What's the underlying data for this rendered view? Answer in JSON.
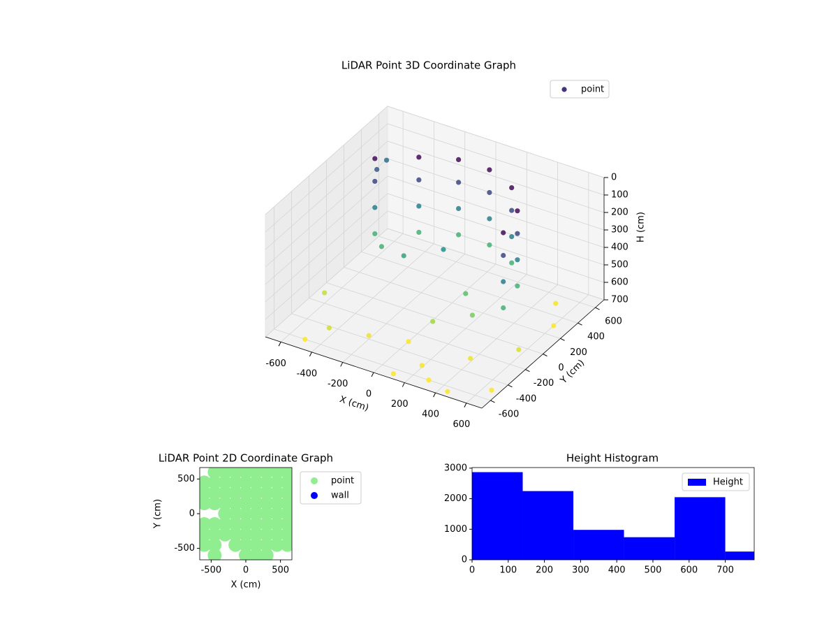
{
  "chart_data": [
    {
      "type": "scatter3d",
      "title": "LiDAR Point 3D Coordinate Graph",
      "x_label": "X (cm)",
      "y_label": "Y (cm)",
      "z_label": "H (cm)",
      "xlim": [
        -700,
        700
      ],
      "ylim": [
        -700,
        700
      ],
      "zlim": [
        700,
        0
      ],
      "xticks": [
        -600,
        -400,
        -200,
        0,
        200,
        400,
        600
      ],
      "yticks": [
        -600,
        -400,
        -200,
        0,
        200,
        400,
        600
      ],
      "zticks": [
        0,
        100,
        200,
        300,
        400,
        500,
        600,
        700
      ],
      "colormap": [
        "#440154",
        "#3b528b",
        "#21918c",
        "#5ec962",
        "#fde725"
      ],
      "legend": "upper right",
      "grid": true,
      "series": [
        {
          "name": "point",
          "color": "#46327e",
          "x": [
            -500,
            -500,
            -500,
            -500,
            -300,
            -300,
            -300,
            -300,
            -100,
            -100,
            -100,
            -100,
            100,
            100,
            100,
            100,
            300,
            300,
            300,
            300,
            450,
            450,
            450,
            450,
            500,
            500,
            500,
            500,
            -400,
            -200,
            0,
            200,
            400,
            600,
            600,
            500,
            300,
            -600,
            -500,
            100,
            650,
            450,
            -600,
            -650,
            -200,
            0,
            200,
            300,
            -400,
            100
          ],
          "y": [
            200,
            200,
            200,
            200,
            350,
            350,
            350,
            350,
            450,
            450,
            450,
            450,
            450,
            450,
            450,
            450,
            350,
            350,
            350,
            350,
            150,
            150,
            150,
            150,
            -100,
            -100,
            -100,
            -100,
            -500,
            -400,
            -300,
            -500,
            -300,
            -100,
            300,
            500,
            -600,
            -200,
            -600,
            -650,
            -500,
            -650,
            400,
            600,
            0,
            100,
            0,
            -100,
            100,
            -200
          ],
          "z": [
            20,
            150,
            300,
            450,
            20,
            150,
            300,
            450,
            20,
            150,
            300,
            450,
            20,
            150,
            300,
            450,
            20,
            150,
            300,
            450,
            20,
            150,
            300,
            450,
            20,
            150,
            300,
            450,
            650,
            680,
            700,
            690,
            680,
            660,
            700,
            690,
            700,
            640,
            700,
            700,
            700,
            700,
            200,
            250,
            400,
            350,
            500,
            550,
            450,
            600
          ]
        }
      ]
    },
    {
      "type": "scatter",
      "title": "LiDAR Point 2D Coordinate Graph",
      "x_label": "X (cm)",
      "y_label": "Y (cm)",
      "xlim": [
        -665,
        665
      ],
      "ylim": [
        -665,
        665
      ],
      "xticks": [
        -500,
        0,
        500
      ],
      "yticks": [
        -500,
        0,
        500
      ],
      "legend": "outside right",
      "series": [
        {
          "name": "point",
          "color": "#90ee90",
          "x": [
            -450,
            -300,
            -150,
            0,
            150,
            300,
            450,
            600,
            -600,
            -450,
            -300,
            -150,
            0,
            150,
            300,
            450,
            600,
            -600,
            -450,
            -300,
            -150,
            0,
            150,
            300,
            450,
            600,
            -600,
            -450,
            -300,
            -150,
            0,
            150,
            300,
            450,
            600,
            -300,
            -150,
            0,
            150,
            300,
            450,
            600,
            -600,
            -450,
            -300,
            -150,
            0,
            150,
            300,
            450,
            600,
            -600,
            -450,
            -300,
            -150,
            0,
            150,
            300,
            450,
            600,
            -600,
            -450,
            -150,
            0,
            150,
            300,
            450,
            600,
            -450,
            0,
            150,
            300
          ],
          "y": [
            600,
            600,
            600,
            600,
            600,
            600,
            600,
            600,
            450,
            450,
            450,
            450,
            450,
            450,
            450,
            450,
            450,
            300,
            300,
            300,
            300,
            300,
            300,
            300,
            300,
            300,
            150,
            150,
            150,
            150,
            150,
            150,
            150,
            150,
            150,
            0,
            0,
            0,
            0,
            0,
            0,
            0,
            -150,
            -150,
            -150,
            -150,
            -150,
            -150,
            -150,
            -150,
            -150,
            -300,
            -300,
            -300,
            -300,
            -300,
            -300,
            -300,
            -300,
            -300,
            -450,
            -450,
            -450,
            -450,
            -450,
            -450,
            -450,
            -450,
            -600,
            -600,
            -600,
            -600
          ]
        },
        {
          "name": "wall",
          "color": "#0000ff",
          "x": [],
          "y": []
        }
      ]
    },
    {
      "type": "histogram",
      "title": "Height Histogram",
      "bins": [
        0,
        140,
        280,
        420,
        560,
        700,
        840
      ],
      "values": [
        2870,
        2250,
        980,
        740,
        2050,
        270
      ],
      "xlim": [
        0,
        780
      ],
      "ylim": [
        0,
        3020
      ],
      "xticks": [
        0,
        100,
        200,
        300,
        400,
        500,
        600,
        700
      ],
      "yticks": [
        0,
        1000,
        2000,
        3000
      ],
      "series_name": "Height",
      "color": "#0000ff",
      "legend": "upper right"
    }
  ]
}
